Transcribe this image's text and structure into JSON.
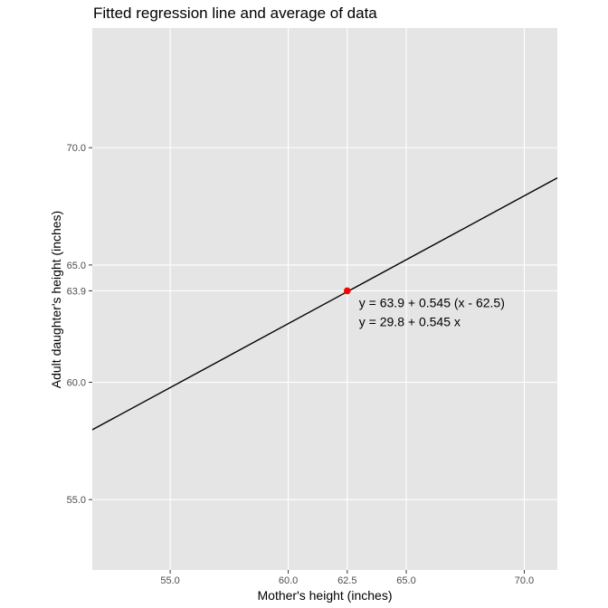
{
  "chart_data": {
    "type": "line",
    "title": "Fitted regression line and average of data",
    "xlabel": "Mother's height (inches)",
    "ylabel": "Adult daughter's height (inches)",
    "xlim": [
      51.7,
      71.4
    ],
    "ylim": [
      52.0,
      75.1
    ],
    "x_ticks": [
      55.0,
      60.0,
      62.5,
      65.0,
      70.0
    ],
    "x_tick_labels": [
      "55.0",
      "60.0",
      "62.5",
      "65.0",
      "70.0"
    ],
    "y_ticks": [
      55.0,
      60.0,
      63.9,
      65.0,
      70.0
    ],
    "y_tick_labels": [
      "55.0",
      "60.0",
      "63.9",
      "65.0",
      "70.0"
    ],
    "grid": true,
    "background": "#e5e5e5",
    "grid_color": "#ffffff",
    "line": {
      "intercept": 29.8,
      "slope": 0.545,
      "color": "#000000"
    },
    "average_point": {
      "x": 62.5,
      "y": 63.9,
      "color": "#ff0000"
    },
    "annotations": [
      "y = 63.9 + 0.545 (x - 62.5)",
      "y = 29.8 + 0.545 x"
    ]
  }
}
